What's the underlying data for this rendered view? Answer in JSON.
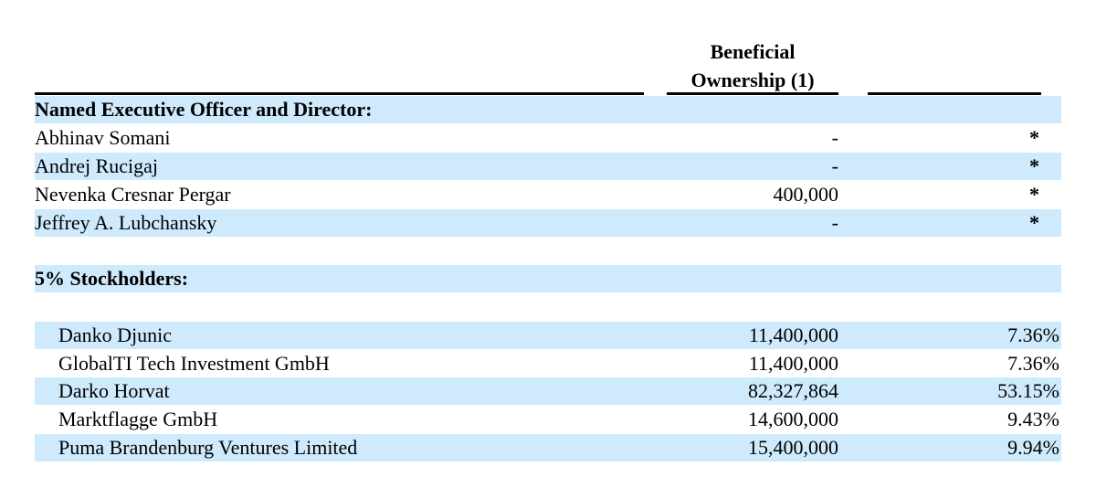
{
  "header": {
    "line1": "Beneficial",
    "line2": "Ownership (1)"
  },
  "colors": {
    "row_shade": "#cfeafc"
  },
  "sections": [
    {
      "title": "Named Executive Officer and Director:",
      "rows": [
        {
          "name": "Abhinav Somani",
          "shares": "-",
          "percent": "*"
        },
        {
          "name": "Andrej Rucigaj",
          "shares": "-",
          "percent": "*"
        },
        {
          "name": "Nevenka Cresnar Pergar",
          "shares": "400,000",
          "percent": "*"
        },
        {
          "name": "Jeffrey A. Lubchansky",
          "shares": "-",
          "percent": "*"
        }
      ]
    },
    {
      "title": "5% Stockholders:",
      "rows": [
        {
          "name": "Danko Djunic",
          "shares": "11,400,000",
          "percent": "7.36%"
        },
        {
          "name": "GlobalTI Tech Investment GmbH",
          "shares": "11,400,000",
          "percent": "7.36%"
        },
        {
          "name": "Darko Horvat",
          "shares": "82,327,864",
          "percent": "53.15%"
        },
        {
          "name": "Marktflagge GmbH",
          "shares": "14,600,000",
          "percent": "9.43%"
        },
        {
          "name": "Puma Brandenburg Ventures Limited",
          "shares": "15,400,000",
          "percent": "9.94%"
        }
      ]
    }
  ]
}
